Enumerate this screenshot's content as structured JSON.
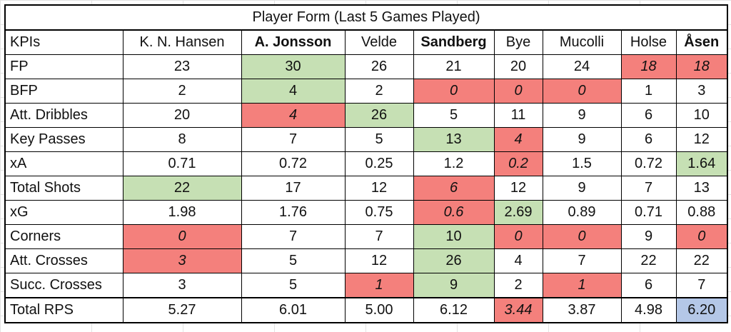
{
  "title": "Player Form (Last 5 Games Played)",
  "header": {
    "kpi_label": "KPIs",
    "players": [
      {
        "name": "K. N. Hansen",
        "bold": false
      },
      {
        "name": "A. Jonsson",
        "bold": true
      },
      {
        "name": "Velde",
        "bold": false
      },
      {
        "name": "Sandberg",
        "bold": true
      },
      {
        "name": "Bye",
        "bold": false
      },
      {
        "name": "Mucolli",
        "bold": false
      },
      {
        "name": "Holse",
        "bold": false
      },
      {
        "name": "Åsen",
        "bold": true
      }
    ]
  },
  "colors": {
    "green_highlight": "#c6e0b4",
    "red_highlight": "#f4807c",
    "blue_highlight": "#b4c7e7"
  },
  "rows": [
    {
      "kpi": "FP",
      "values": [
        "23",
        "30",
        "26",
        "21",
        "20",
        "24",
        "18",
        "18"
      ],
      "style": [
        "",
        "green",
        "",
        "",
        "",
        "",
        "red",
        "red"
      ]
    },
    {
      "kpi": "BFP",
      "values": [
        "2",
        "4",
        "2",
        "0",
        "0",
        "0",
        "1",
        "3"
      ],
      "style": [
        "",
        "green",
        "",
        "red",
        "red",
        "red",
        "",
        ""
      ]
    },
    {
      "kpi": "Att. Dribbles",
      "values": [
        "20",
        "4",
        "26",
        "5",
        "11",
        "9",
        "6",
        "10"
      ],
      "style": [
        "",
        "red",
        "green",
        "",
        "",
        "",
        "",
        ""
      ]
    },
    {
      "kpi": "Key Passes",
      "values": [
        "8",
        "7",
        "5",
        "13",
        "4",
        "9",
        "6",
        "12"
      ],
      "style": [
        "",
        "",
        "",
        "green",
        "red",
        "",
        "",
        ""
      ]
    },
    {
      "kpi": "xA",
      "values": [
        "0.71",
        "0.72",
        "0.25",
        "1.2",
        "0.2",
        "1.5",
        "0.72",
        "1.64"
      ],
      "style": [
        "",
        "",
        "",
        "",
        "red",
        "",
        "",
        "green"
      ]
    },
    {
      "kpi": "Total Shots",
      "values": [
        "22",
        "17",
        "12",
        "6",
        "12",
        "9",
        "7",
        "13"
      ],
      "style": [
        "green",
        "",
        "",
        "red",
        "",
        "",
        "",
        ""
      ]
    },
    {
      "kpi": "xG",
      "values": [
        "1.98",
        "1.76",
        "0.75",
        "0.6",
        "2.69",
        "0.89",
        "0.71",
        "0.88"
      ],
      "style": [
        "",
        "",
        "",
        "red",
        "green",
        "",
        "",
        ""
      ]
    },
    {
      "kpi": "Corners",
      "values": [
        "0",
        "7",
        "7",
        "10",
        "0",
        "0",
        "9",
        "0"
      ],
      "style": [
        "red",
        "",
        "",
        "green",
        "red",
        "red",
        "",
        "red"
      ]
    },
    {
      "kpi": "Att. Crosses",
      "values": [
        "3",
        "5",
        "12",
        "26",
        "4",
        "7",
        "22",
        "22"
      ],
      "style": [
        "red",
        "",
        "",
        "green",
        "",
        "",
        "",
        ""
      ]
    },
    {
      "kpi": "Succ. Crosses",
      "values": [
        "3",
        "5",
        "1",
        "9",
        "2",
        "1",
        "6",
        "7"
      ],
      "style": [
        "",
        "",
        "red",
        "green",
        "",
        "red",
        "",
        ""
      ]
    }
  ],
  "total": {
    "kpi": "Total RPS",
    "values": [
      "5.27",
      "6.01",
      "5.00",
      "6.12",
      "3.44",
      "3.87",
      "4.98",
      "6.20"
    ],
    "style": [
      "",
      "",
      "",
      "",
      "red",
      "",
      "",
      "blue"
    ]
  }
}
